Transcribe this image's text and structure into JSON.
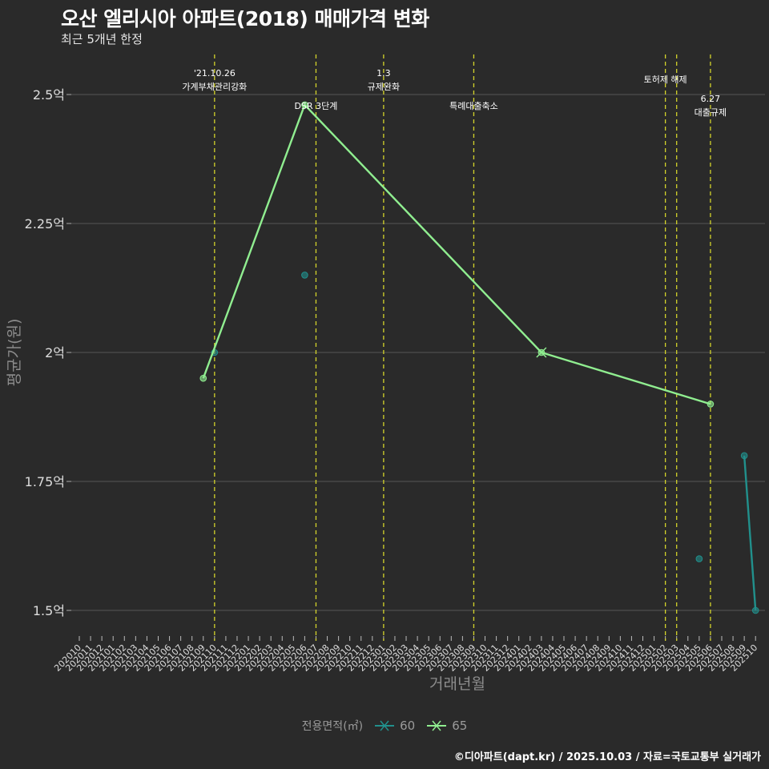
{
  "header": {
    "title": "오산 엘리시아 아파트(2018) 매매가격 변화",
    "subtitle": "최근 5개년 한정"
  },
  "legend": {
    "title": "전용면적(㎡)",
    "items": [
      {
        "label": "60",
        "color": "#21908c"
      },
      {
        "label": "65",
        "color": "#90ee90"
      }
    ]
  },
  "footer": {
    "credit": "©디아파트(dapt.kr) / 2025.10.03 / 자료=국토교통부 실거래가"
  },
  "colors": {
    "background": "#2a2a2a",
    "grid": "#555555",
    "vline": "#d4d42a",
    "annotation_text": "#ffffff",
    "axis_title": "#8c8c8c",
    "tick_text": "#dddddd"
  },
  "chart_data": {
    "type": "line",
    "title": "오산 엘리시아 아파트(2018) 매매가격 변화",
    "subtitle": "최근 5개년 한정",
    "xlabel": "거래년월",
    "ylabel": "평균가(원)",
    "ylim": [
      1.5,
      2.5
    ],
    "y_ticks": [
      {
        "value": 1.5,
        "label": "1.5억"
      },
      {
        "value": 1.75,
        "label": "1.75억"
      },
      {
        "value": 2.0,
        "label": "2억"
      },
      {
        "value": 2.25,
        "label": "2.25억"
      },
      {
        "value": 2.5,
        "label": "2.5억"
      }
    ],
    "grid": {
      "horizontal": true,
      "vertical": false
    },
    "legend_position": "bottom",
    "categories": [
      "202010",
      "202011",
      "202012",
      "202101",
      "202102",
      "202103",
      "202104",
      "202105",
      "202106",
      "202107",
      "202108",
      "202109",
      "202110",
      "202111",
      "202112",
      "202201",
      "202202",
      "202203",
      "202204",
      "202205",
      "202206",
      "202207",
      "202208",
      "202209",
      "202210",
      "202211",
      "202212",
      "202301",
      "202302",
      "202303",
      "202304",
      "202305",
      "202306",
      "202307",
      "202308",
      "202309",
      "202310",
      "202311",
      "202312",
      "202401",
      "202402",
      "202403",
      "202404",
      "202405",
      "202406",
      "202407",
      "202408",
      "202409",
      "202410",
      "202411",
      "202412",
      "202501",
      "202502",
      "202503",
      "202504",
      "202505",
      "202506",
      "202507",
      "202508",
      "202509",
      "202510"
    ],
    "series": [
      {
        "name": "60",
        "color": "#21908c",
        "points": [
          {
            "x": "202110",
            "y": 2.0
          },
          {
            "x": "202206",
            "y": 2.15
          },
          {
            "x": "202505",
            "y": 1.6
          },
          {
            "x": "202509",
            "y": 1.8
          },
          {
            "x": "202510",
            "y": 1.5
          }
        ],
        "line_groups": [
          [
            0
          ],
          [
            1
          ],
          [
            2
          ],
          [
            3,
            4
          ]
        ],
        "x_marker_at": []
      },
      {
        "name": "65",
        "color": "#90ee90",
        "points": [
          {
            "x": "202109",
            "y": 1.95
          },
          {
            "x": "202206",
            "y": 2.48
          },
          {
            "x": "202403",
            "y": 2.0
          },
          {
            "x": "202506",
            "y": 1.9
          }
        ],
        "line_groups": [
          [
            0,
            1,
            2,
            3
          ]
        ],
        "x_marker_at": [
          2
        ]
      }
    ],
    "annotations": [
      {
        "x": "202110",
        "lines": [
          "'21.10.26",
          "가계부채관리강화"
        ],
        "row": "top"
      },
      {
        "x": "202207",
        "lines": [
          "DSR 3단계"
        ],
        "row": "low"
      },
      {
        "x": "202301",
        "lines": [
          "1.3",
          "규제완화"
        ],
        "row": "top"
      },
      {
        "x": "202309",
        "lines": [
          "특례대출축소"
        ],
        "row": "low"
      },
      {
        "x": "202502",
        "lines": [
          "토허제 해제"
        ],
        "row": "mid",
        "label_offset": 0
      },
      {
        "x": "202503",
        "lines": [],
        "row": "none"
      },
      {
        "x": "202506",
        "lines": [
          "6.27",
          "대출규제"
        ],
        "row": "lower2"
      }
    ]
  }
}
